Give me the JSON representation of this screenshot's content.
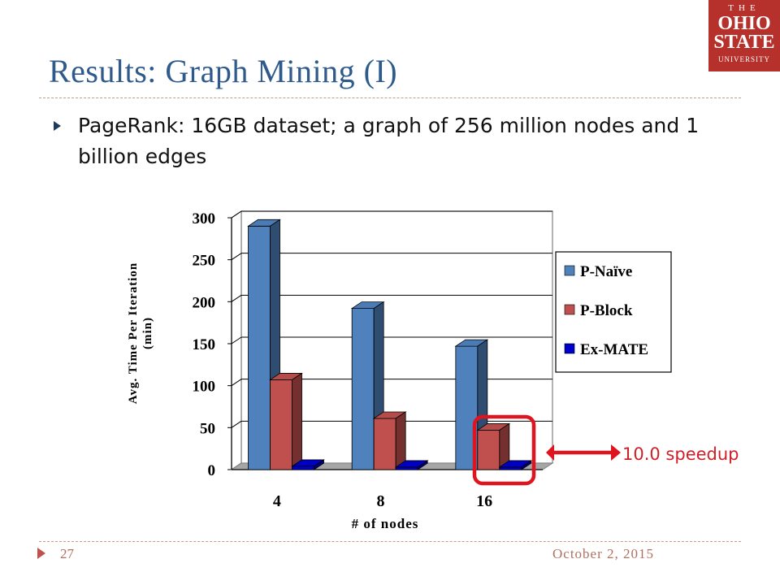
{
  "slide": {
    "title": "Results: Graph Mining (I)",
    "bullet": "PageRank: 16GB dataset; a graph of 256 million nodes and 1 billion edges",
    "page_number": "27",
    "date": "October 2, 2015",
    "logo": {
      "the": "THE",
      "line1": "OHIO",
      "line2": "STATE",
      "line3": "UNIVERSITY"
    }
  },
  "annotation": {
    "label": "10.0 speedup",
    "color": "#E0141F"
  },
  "chart_data": {
    "type": "bar",
    "categories": [
      "4",
      "8",
      "16"
    ],
    "series": [
      {
        "name": "P-Naïve",
        "values": [
          290,
          192,
          147
        ],
        "color": "#4F81BD"
      },
      {
        "name": "P-Block",
        "values": [
          107,
          61,
          47
        ],
        "color": "#C0504D"
      },
      {
        "name": "Ex-MATE",
        "values": [
          4,
          3,
          3
        ],
        "color": "#0000CC"
      }
    ],
    "yticks": [
      "0",
      "50",
      "100",
      "150",
      "200",
      "250",
      "300"
    ],
    "ylim": [
      0,
      300
    ],
    "xlabel": "# of nodes",
    "ylabel": "Avg. Time Per Iteration (min)",
    "grid": true,
    "legend": "right",
    "style": "3d"
  }
}
